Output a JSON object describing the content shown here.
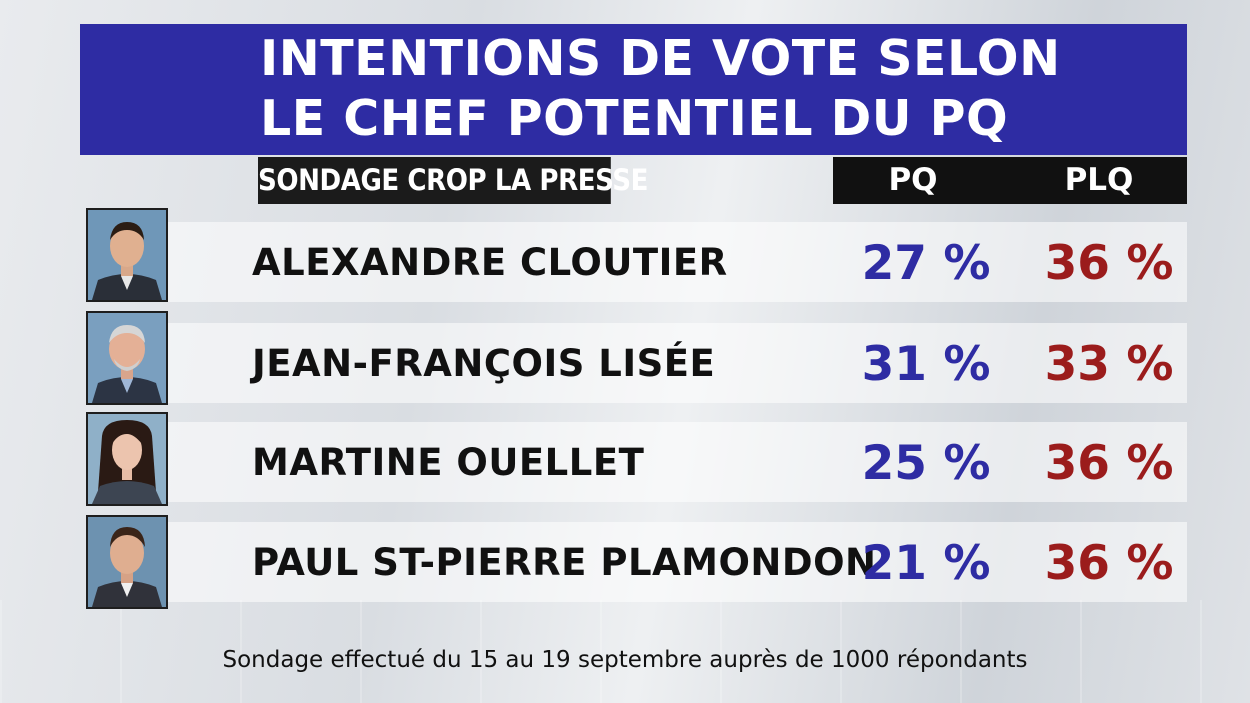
{
  "title": {
    "line1": "INTENTIONS DE VOTE SELON",
    "line2": "LE CHEF POTENTIEL DU PQ"
  },
  "source_label": "SONDAGE CROP LA PRESSE",
  "footnote": "Sondage effectué du 15 au 19 septembre auprès de 1000 répondants",
  "colors": {
    "title_band": "#2e2ca3",
    "pq": "#2e2ca3",
    "plq": "#9b1c1c",
    "header_band": "#111111"
  },
  "chart_data": {
    "type": "table",
    "columns": [
      "PQ",
      "PLQ"
    ],
    "rows": [
      {
        "name": "ALEXANDRE CLOUTIER",
        "pq": "27 %",
        "plq": "36 %"
      },
      {
        "name": "JEAN-FRANÇOIS LISÉE",
        "pq": "31 %",
        "plq": "33 %"
      },
      {
        "name": "MARTINE OUELLET",
        "pq": "25 %",
        "plq": "36 %"
      },
      {
        "name": "PAUL ST-PIERRE PLAMONDON",
        "pq": "21 %",
        "plq": "36 %"
      }
    ],
    "values": {
      "pq": [
        27,
        31,
        25,
        21
      ],
      "plq": [
        36,
        33,
        36,
        36
      ]
    }
  }
}
